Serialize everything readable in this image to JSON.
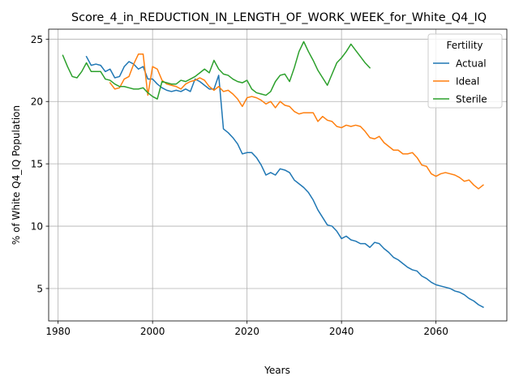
{
  "chart_data": {
    "type": "line",
    "title": "Score_4_in_REDUCTION_IN_LENGTH_OF_WORK_WEEK_for_White_Q4_IQ",
    "xlabel": "Years",
    "ylabel": "% of White Q4_IQ Population",
    "xlim": [
      1978,
      2075
    ],
    "ylim": [
      2.4,
      25.8
    ],
    "xticks": [
      1980,
      2000,
      2020,
      2040,
      2060
    ],
    "yticks": [
      5,
      10,
      15,
      20,
      25
    ],
    "grid": true,
    "legend": {
      "title": "Fertility",
      "position": "top-right"
    },
    "series": [
      {
        "name": "Actual",
        "color": "#1f77b4",
        "x": [
          1986,
          1987,
          1988,
          1989,
          1990,
          1991,
          1992,
          1993,
          1994,
          1995,
          1996,
          1997,
          1998,
          1999,
          2000,
          2001,
          2002,
          2003,
          2004,
          2005,
          2006,
          2007,
          2008,
          2009,
          2010,
          2011,
          2012,
          2013,
          2014,
          2015,
          2016,
          2017,
          2018,
          2019,
          2020,
          2021,
          2022,
          2023,
          2024,
          2025,
          2026,
          2027,
          2028,
          2029,
          2030,
          2031,
          2032,
          2033,
          2034,
          2035,
          2036,
          2037,
          2038,
          2039,
          2040,
          2041,
          2042,
          2043,
          2044,
          2045,
          2046,
          2047,
          2048,
          2049,
          2050,
          2051,
          2052,
          2053,
          2054,
          2055,
          2056,
          2057,
          2058,
          2059,
          2060,
          2061,
          2062,
          2063,
          2064,
          2065,
          2066,
          2067,
          2068,
          2069,
          2070
        ],
        "values": [
          23.6,
          22.9,
          23.0,
          22.9,
          22.4,
          22.6,
          21.9,
          22.0,
          22.8,
          23.2,
          23.0,
          22.6,
          22.8,
          21.8,
          21.8,
          21.4,
          21.1,
          20.9,
          20.8,
          20.9,
          20.8,
          21.0,
          20.8,
          21.8,
          21.6,
          21.3,
          21.0,
          21.0,
          22.1,
          17.8,
          17.5,
          17.1,
          16.6,
          15.8,
          15.9,
          15.9,
          15.5,
          14.9,
          14.1,
          14.3,
          14.1,
          14.6,
          14.5,
          14.3,
          13.7,
          13.4,
          13.1,
          12.7,
          12.1,
          11.3,
          10.7,
          10.1,
          10.0,
          9.6,
          9.0,
          9.2,
          8.9,
          8.8,
          8.6,
          8.6,
          8.3,
          8.7,
          8.6,
          8.2,
          7.9,
          7.5,
          7.3,
          7.0,
          6.7,
          6.5,
          6.4,
          6.0,
          5.8,
          5.5,
          5.3,
          5.2,
          5.1,
          5.0,
          4.8,
          4.7,
          4.5,
          4.2,
          4.0,
          3.7,
          3.5
        ]
      },
      {
        "name": "Ideal",
        "color": "#ff7f0e",
        "x": [
          1991,
          1992,
          1993,
          1994,
          1995,
          1996,
          1997,
          1998,
          1999,
          2000,
          2001,
          2002,
          2003,
          2004,
          2005,
          2006,
          2007,
          2008,
          2009,
          2010,
          2011,
          2012,
          2013,
          2014,
          2015,
          2016,
          2017,
          2018,
          2019,
          2020,
          2021,
          2022,
          2023,
          2024,
          2025,
          2026,
          2027,
          2028,
          2029,
          2030,
          2031,
          2032,
          2033,
          2034,
          2035,
          2036,
          2037,
          2038,
          2039,
          2040,
          2041,
          2042,
          2043,
          2044,
          2045,
          2046,
          2047,
          2048,
          2049,
          2050,
          2051,
          2052,
          2053,
          2054,
          2055,
          2056,
          2057,
          2058,
          2059,
          2060,
          2061,
          2062,
          2063,
          2064,
          2065,
          2066,
          2067,
          2068,
          2069,
          2070
        ],
        "values": [
          21.5,
          21.0,
          21.1,
          21.8,
          22.0,
          23.0,
          23.8,
          23.8,
          20.5,
          22.8,
          22.6,
          21.7,
          21.4,
          21.3,
          21.2,
          21.0,
          21.4,
          21.6,
          21.7,
          21.9,
          21.7,
          21.2,
          20.9,
          21.2,
          20.8,
          20.9,
          20.6,
          20.2,
          19.6,
          20.3,
          20.4,
          20.3,
          20.1,
          19.8,
          20.0,
          19.5,
          20.0,
          19.7,
          19.6,
          19.2,
          19.0,
          19.1,
          19.1,
          19.1,
          18.4,
          18.8,
          18.5,
          18.4,
          18.0,
          17.9,
          18.1,
          18.0,
          18.1,
          18.0,
          17.6,
          17.1,
          17.0,
          17.2,
          16.7,
          16.4,
          16.1,
          16.1,
          15.8,
          15.8,
          15.9,
          15.5,
          14.9,
          14.8,
          14.2,
          14.0,
          14.2,
          14.3,
          14.2,
          14.1,
          13.9,
          13.6,
          13.7,
          13.3,
          13.0,
          13.3
        ]
      },
      {
        "name": "Sterile",
        "color": "#2ca02c",
        "x": [
          1981,
          1982,
          1983,
          1984,
          1985,
          1986,
          1987,
          1988,
          1989,
          1990,
          1991,
          1992,
          1993,
          1994,
          1995,
          1996,
          1997,
          1998,
          1999,
          2000,
          2001,
          2002,
          2003,
          2004,
          2005,
          2006,
          2007,
          2008,
          2009,
          2010,
          2011,
          2012,
          2013,
          2014,
          2015,
          2016,
          2017,
          2018,
          2019,
          2020,
          2021,
          2022,
          2023,
          2024,
          2025,
          2026,
          2027,
          2028,
          2029,
          2030,
          2031,
          2032,
          2033,
          2034,
          2035,
          2036,
          2037,
          2038,
          2039,
          2040,
          2041,
          2042,
          2043,
          2044,
          2045,
          2046
        ],
        "values": [
          23.7,
          22.8,
          22.0,
          21.9,
          22.4,
          23.1,
          22.4,
          22.4,
          22.4,
          21.8,
          21.7,
          21.4,
          21.2,
          21.2,
          21.1,
          21.0,
          21.0,
          21.1,
          20.7,
          20.4,
          20.2,
          21.6,
          21.5,
          21.4,
          21.4,
          21.7,
          21.6,
          21.8,
          22.0,
          22.3,
          22.6,
          22.3,
          23.3,
          22.6,
          22.2,
          22.1,
          21.8,
          21.6,
          21.5,
          21.7,
          21.0,
          20.7,
          20.6,
          20.5,
          20.8,
          21.6,
          22.1,
          22.2,
          21.6,
          22.7,
          24.0,
          24.8,
          24.0,
          23.3,
          22.5,
          21.9,
          21.3,
          22.2,
          23.1,
          23.5,
          24.0,
          24.6,
          24.1,
          23.6,
          23.1,
          22.7
        ]
      }
    ]
  }
}
